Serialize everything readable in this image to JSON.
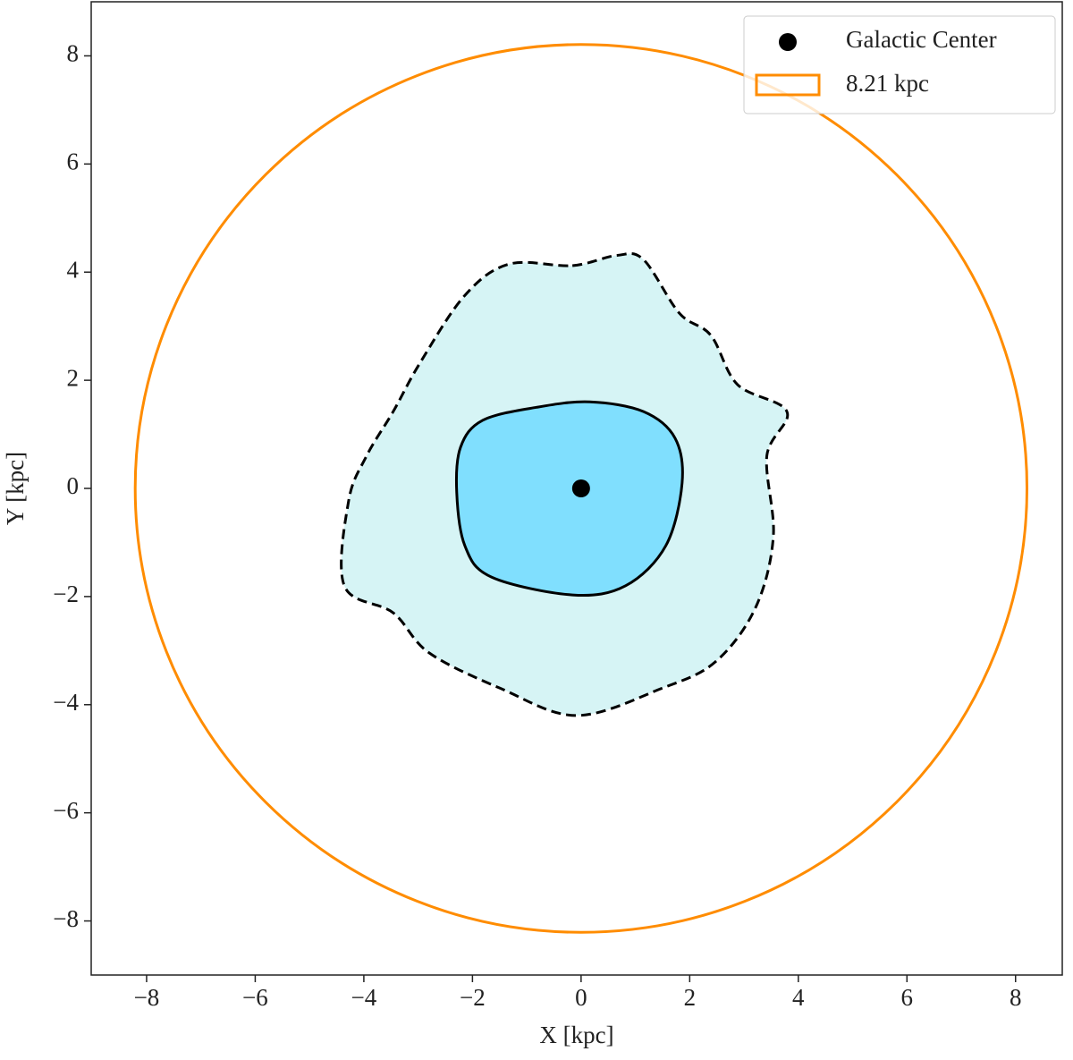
{
  "chart_data": {
    "type": "contour",
    "xlabel": "X [kpc]",
    "ylabel": "Y [kpc]",
    "xlim": [
      -9.02,
      8.86
    ],
    "ylim": [
      -9,
      9
    ],
    "xticks": [
      {
        "value": -8,
        "label": "−8"
      },
      {
        "value": -6,
        "label": "−6"
      },
      {
        "value": -4,
        "label": "−4"
      },
      {
        "value": -2,
        "label": "−2"
      },
      0,
      2,
      4,
      6,
      8
    ],
    "yticks": [
      {
        "value": -8,
        "label": "−8"
      },
      {
        "value": -6,
        "label": "−6"
      },
      {
        "value": -4,
        "label": "−4"
      },
      {
        "value": -2,
        "label": "−2"
      },
      0,
      2,
      4,
      6,
      8
    ],
    "legend_loc": "upper right",
    "galactic_center": {
      "name": "Galactic Center",
      "x": 0,
      "y": 0,
      "color": "#000000"
    },
    "circle": {
      "name": "8.21 kpc",
      "radius": 8.21,
      "color": "#ff8c00"
    },
    "contours": [
      {
        "fill": "#d6f4f5",
        "linestyle": "dashed",
        "x": [
          -0.16,
          0.66,
          1.15,
          1.81,
          2.39,
          2.88,
          3.79,
          3.42,
          3.54,
          3.21,
          2.47,
          1.48,
          -0.08,
          -1.48,
          -2.8,
          -3.46,
          -4.36,
          -4.28,
          -3.95,
          -3.46,
          -2.96,
          -2.14,
          -1.32
        ],
        "y": [
          4.12,
          4.31,
          4.23,
          3.24,
          2.83,
          1.92,
          1.42,
          0.6,
          -0.89,
          -2.21,
          -3.21,
          -3.7,
          -4.2,
          -3.7,
          -3.04,
          -2.3,
          -1.8,
          -0.23,
          0.6,
          1.42,
          2.33,
          3.57,
          4.15
        ]
      },
      {
        "fill": "#80dffe",
        "linestyle": "solid",
        "x": [
          0.16,
          -0.82,
          -1.81,
          -2.22,
          -2.29,
          -2.14,
          -1.65,
          -0.16,
          0.82,
          1.56,
          1.86,
          1.73,
          1.15
        ],
        "y": [
          1.6,
          1.5,
          1.26,
          0.76,
          -0.07,
          -1.06,
          -1.64,
          -1.97,
          -1.8,
          -1.06,
          0.1,
          0.93,
          1.42
        ]
      }
    ]
  }
}
